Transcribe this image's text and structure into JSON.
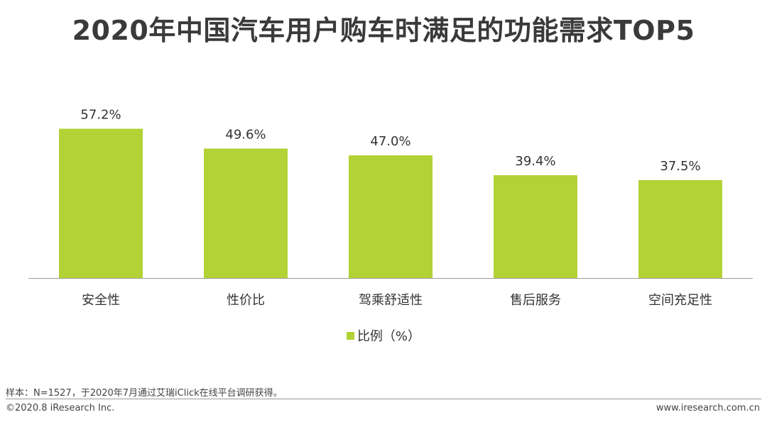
{
  "chart_data": {
    "type": "bar",
    "title": "2020年中国汽车用户购车时满足的功能需求TOP5",
    "categories": [
      "安全性",
      "性价比",
      "驾乘舒适性",
      "售后服务",
      "空间充足性"
    ],
    "series": [
      {
        "name": "比例（%）",
        "values": [
          57.2,
          49.6,
          47.0,
          39.4,
          37.5
        ],
        "color": "#b2d235"
      }
    ],
    "data_labels": [
      "57.2%",
      "49.6%",
      "47.0%",
      "39.4%",
      "37.5%"
    ],
    "ylim": [
      0,
      60
    ],
    "grid": false,
    "legend_position": "bottom"
  },
  "footer": {
    "note": "样本：N=1527，于2020年7月通过艾瑞iClick在线平台调研获得。",
    "copyright": "©2020.8 iResearch Inc.",
    "website": "www.iresearch.com.cn"
  }
}
